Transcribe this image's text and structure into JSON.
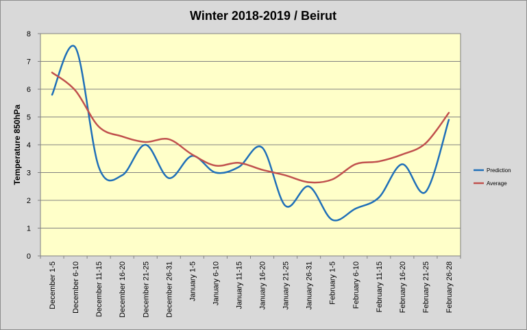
{
  "chart_data": {
    "type": "line",
    "title": "Winter 2018-2019 / Beirut",
    "xlabel": "",
    "ylabel": "Temperature 850hPa",
    "ylim": [
      0,
      8
    ],
    "yticks": [
      "0",
      "1",
      "2",
      "3",
      "4",
      "5",
      "6",
      "7",
      "8"
    ],
    "grid": true,
    "legend_position": "right",
    "background_color": "#ffffc9",
    "categories": [
      "December 1-5",
      "December 6-10",
      "December 11-15",
      "December 16-20",
      "December 21-25",
      "December 26-31",
      "January 1-5",
      "January 6-10",
      "January 11-15",
      "January 16-20",
      "January 21-25",
      "January 26-31",
      "February 1-5",
      "February 6-10",
      "February 11-15",
      "February 16-20",
      "February 21-25",
      "February 26-28"
    ],
    "series": [
      {
        "name": "Prediction",
        "color": "#1f6fb8",
        "values": [
          5.8,
          7.5,
          3.2,
          2.9,
          4.0,
          2.8,
          3.6,
          3.0,
          3.2,
          3.9,
          1.8,
          2.5,
          1.3,
          1.7,
          2.1,
          3.3,
          2.3,
          4.9
        ]
      },
      {
        "name": "Average",
        "color": "#c0504d",
        "values": [
          6.6,
          5.95,
          4.65,
          4.3,
          4.1,
          4.2,
          3.65,
          3.25,
          3.35,
          3.1,
          2.9,
          2.65,
          2.75,
          3.3,
          3.4,
          3.65,
          4.05,
          5.15
        ]
      }
    ]
  }
}
